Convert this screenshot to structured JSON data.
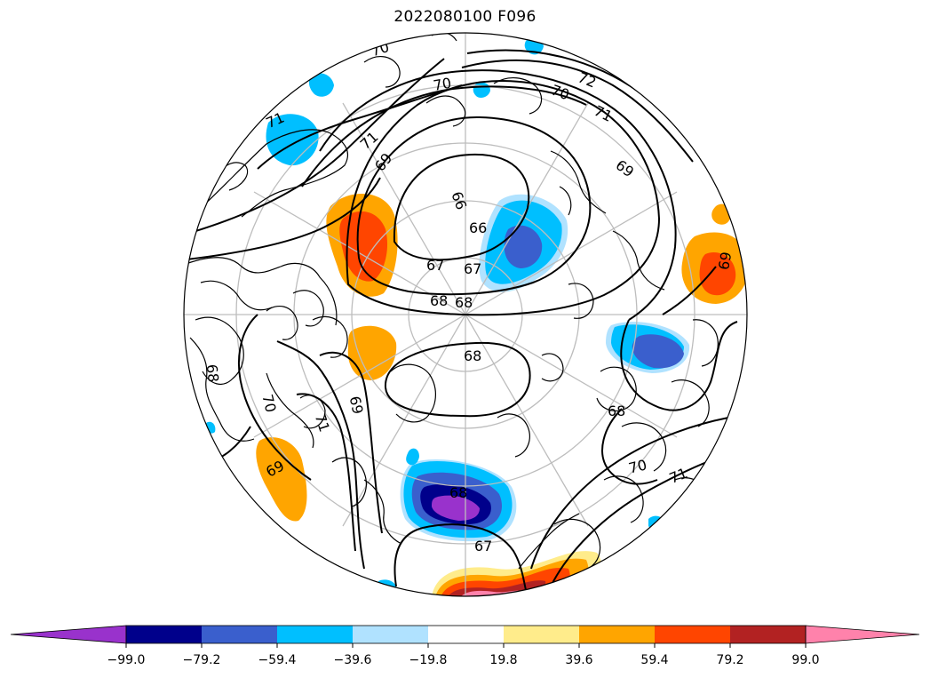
{
  "title": "2022080100 F096",
  "colorbar": {
    "colors": [
      "#9932cc",
      "#00008b",
      "#3a5fcd",
      "#00bfff",
      "#b0e2ff",
      "#ffffff",
      "#ffec8b",
      "#ffa500",
      "#ff4500",
      "#b22222",
      "#ff82ab"
    ],
    "extend": "both",
    "ticks": [
      "−99.0",
      "−79.2",
      "−59.4",
      "−39.6",
      "−19.8",
      "19.8",
      "39.6",
      "59.4",
      "79.2",
      "99.0"
    ]
  },
  "contour_labels": [
    "70",
    "70",
    "70",
    "72",
    "71",
    "71",
    "71",
    "69",
    "69",
    "66",
    "66",
    "67",
    "67",
    "68",
    "68",
    "68",
    "69",
    "70",
    "69",
    "71",
    "68",
    "69",
    "68",
    "70",
    "71",
    "68",
    "67"
  ]
}
